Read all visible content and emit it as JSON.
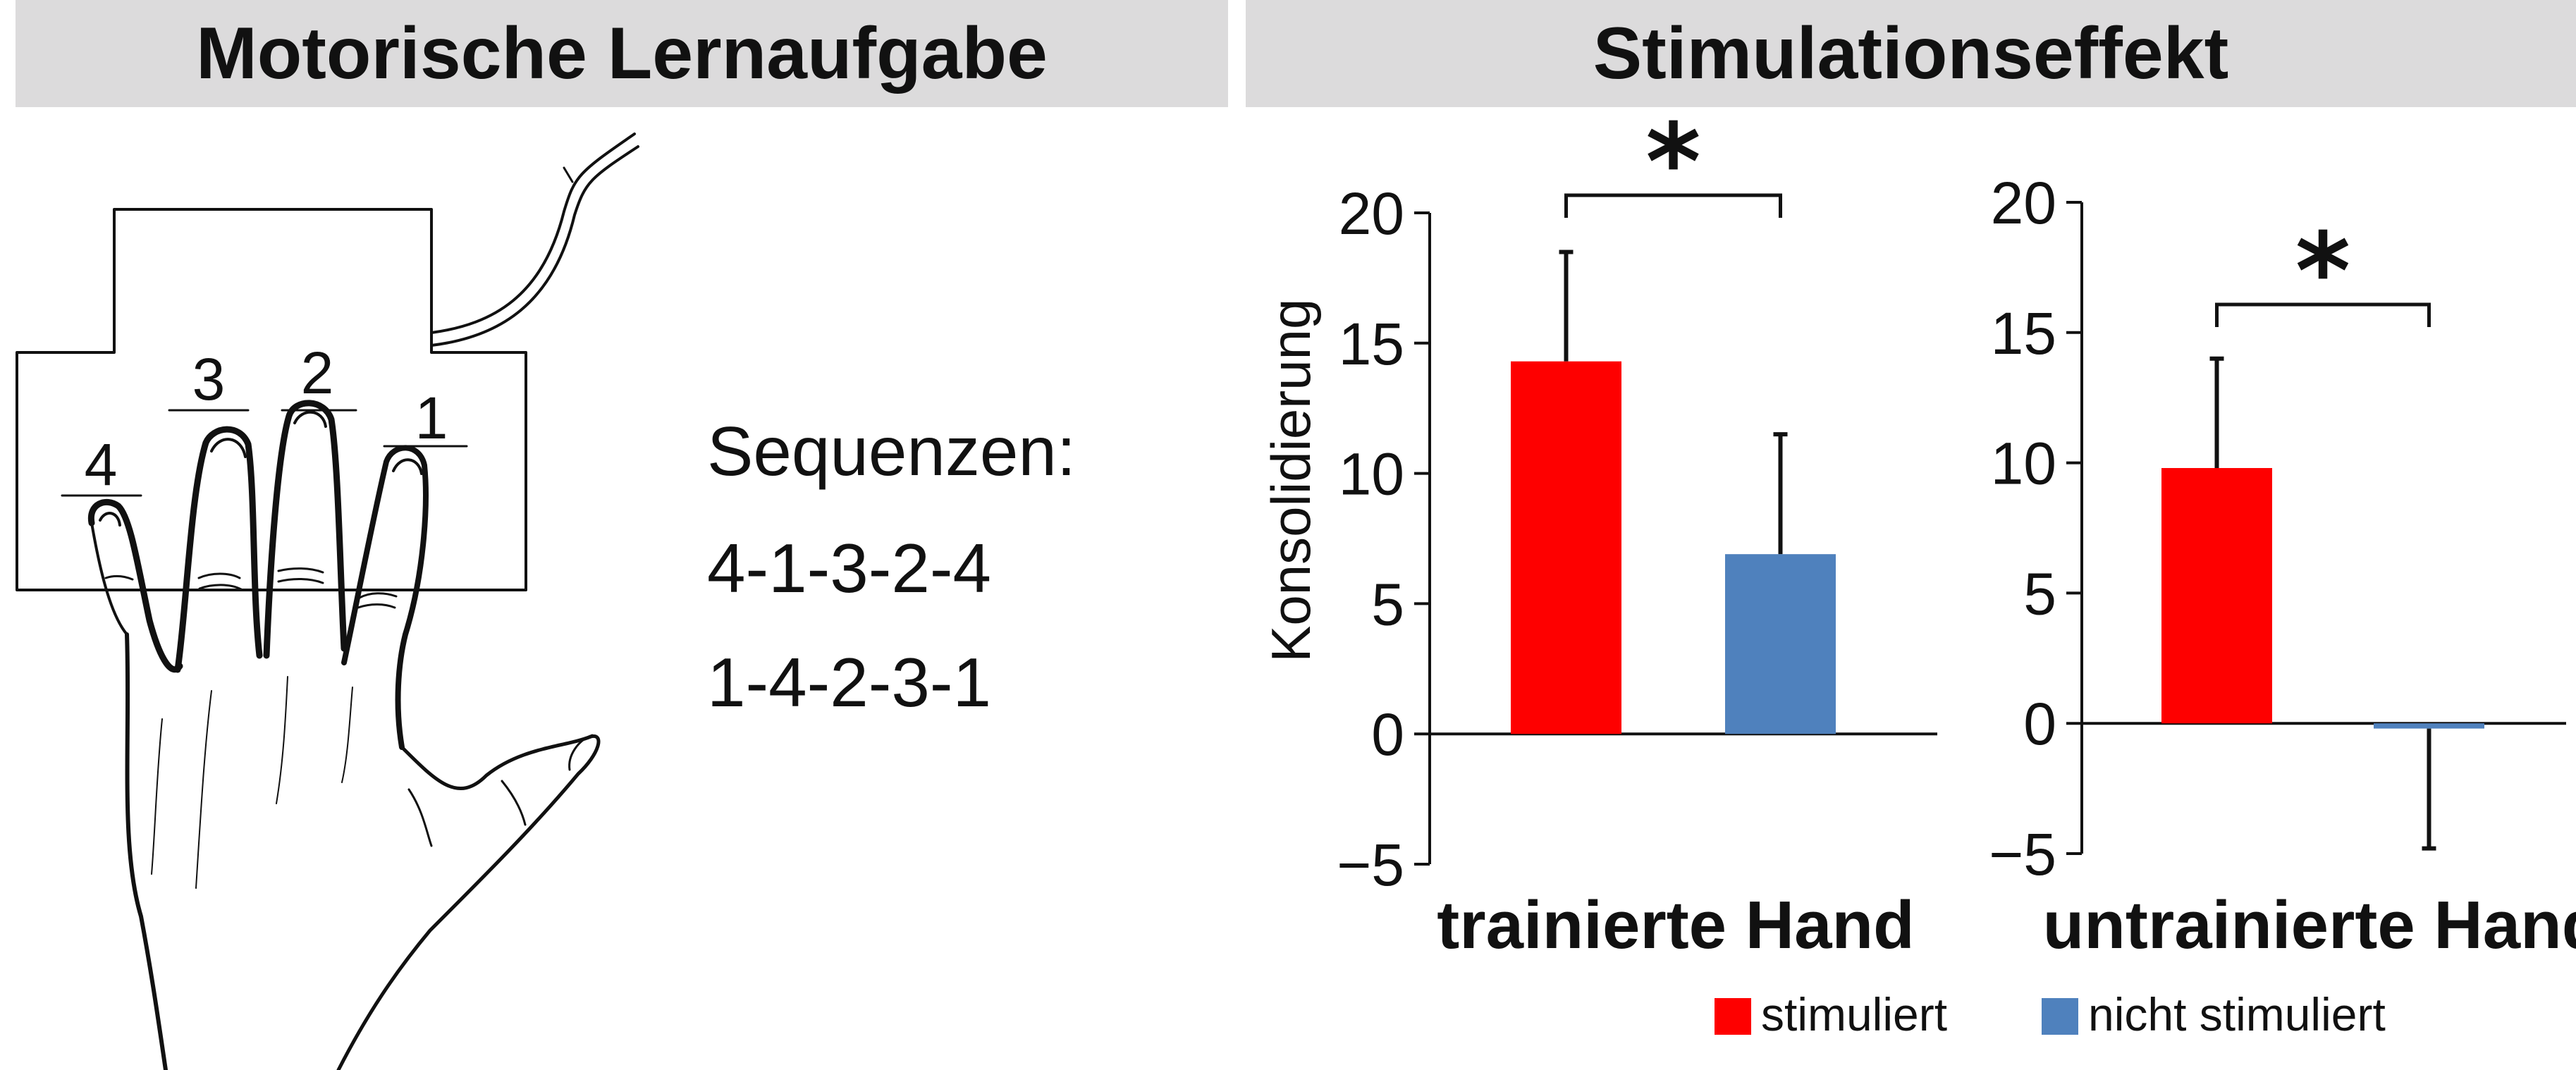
{
  "left_panel": {
    "title": "Motorische Lernaufgabe",
    "finger_labels": [
      "4",
      "3",
      "2",
      "1"
    ],
    "sequences_title": "Sequenzen:",
    "sequences": [
      "4-1-3-2-4",
      "1-4-2-3-1"
    ]
  },
  "right_panel": {
    "title": "Stimulationseffekt"
  },
  "chart_data": [
    {
      "type": "bar",
      "title": "",
      "xlabel": "trainierte Hand",
      "ylabel": "Konsolidierung",
      "ylim": [
        -5,
        20
      ],
      "yticks": [
        "20",
        "15",
        "10",
        "5",
        "0",
        "−5"
      ],
      "categories": [
        "stimuliert",
        "nicht stimuliert"
      ],
      "values": [
        14.3,
        6.9
      ],
      "error_upper": [
        18.5,
        11.5
      ],
      "significance": "*",
      "colors": [
        "#fe0000",
        "#4f81bd"
      ]
    },
    {
      "type": "bar",
      "title": "",
      "xlabel": "untrainierte Hand",
      "ylabel": "",
      "ylim": [
        -5,
        20
      ],
      "yticks": [
        "20",
        "15",
        "10",
        "5",
        "0",
        "−5"
      ],
      "categories": [
        "stimuliert",
        "nicht stimuliert"
      ],
      "values": [
        9.8,
        -0.2
      ],
      "error_upper": [
        14.0,
        -4.8
      ],
      "significance": "*",
      "colors": [
        "#fe0000",
        "#4f81bd"
      ]
    }
  ],
  "legend": [
    {
      "label": "stimuliert",
      "color": "#fe0000"
    },
    {
      "label": "nicht stimuliert",
      "color": "#4f81bd"
    }
  ]
}
